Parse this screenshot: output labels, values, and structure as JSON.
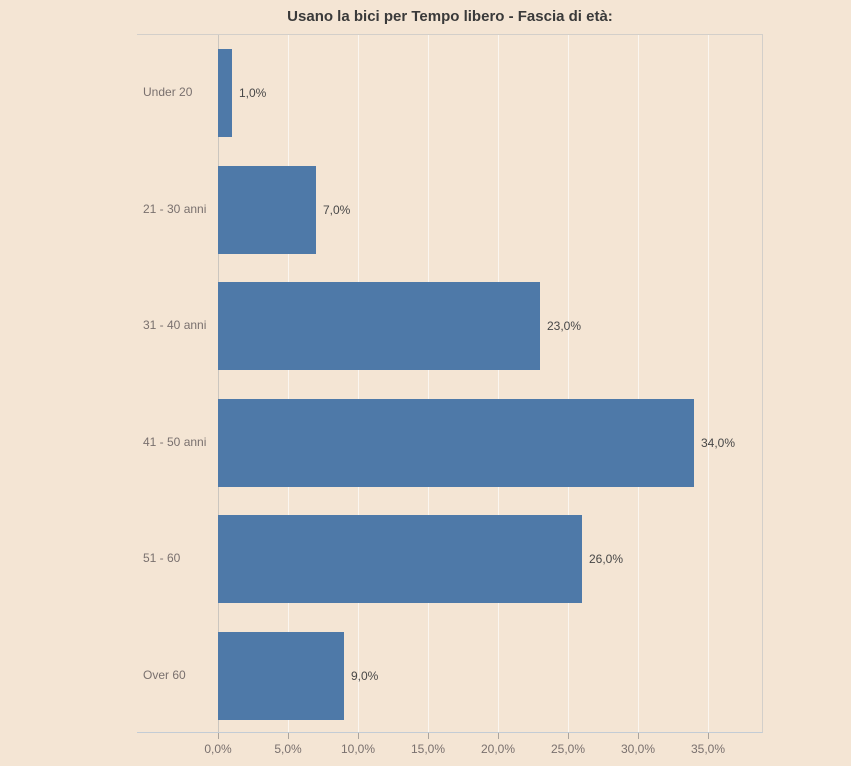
{
  "title": "Usano la bici per Tempo libero - Fascia di età:",
  "colors": {
    "background": "#f4e5d4",
    "bar": "#4e79a8",
    "pane_border": "#d3cfca",
    "bottom_border": "#c3ccd5",
    "axis_line": "#cbc6bf",
    "gridline": "rgba(255,255,255,0.65)",
    "tick_mark": "#aaa39b",
    "axis_text": "#79706e",
    "value_text": "#474747",
    "title_text": "#3a3a3a"
  },
  "chart_data": {
    "type": "bar",
    "orientation": "horizontal",
    "title": "Usano la bici per Tempo libero - Fascia di età:",
    "categories": [
      "Under 20",
      "21 - 30 anni",
      "31 - 40 anni",
      "41 - 50 anni",
      "51 - 60",
      "Over 60"
    ],
    "values": [
      1.0,
      7.0,
      23.0,
      34.0,
      26.0,
      9.0
    ],
    "value_labels": [
      "1,0%",
      "7,0%",
      "23,0%",
      "34,0%",
      "26,0%",
      "9,0%"
    ],
    "x_tick_values": [
      0,
      5,
      10,
      15,
      20,
      25,
      30,
      35
    ],
    "x_tick_labels": [
      "0,0%",
      "5,0%",
      "10,0%",
      "15,0%",
      "20,0%",
      "25,0%",
      "30,0%",
      "35,0%"
    ],
    "xlabel": "",
    "ylabel": "",
    "xlim": [
      0,
      38.9
    ],
    "grid": true,
    "legend": false
  }
}
